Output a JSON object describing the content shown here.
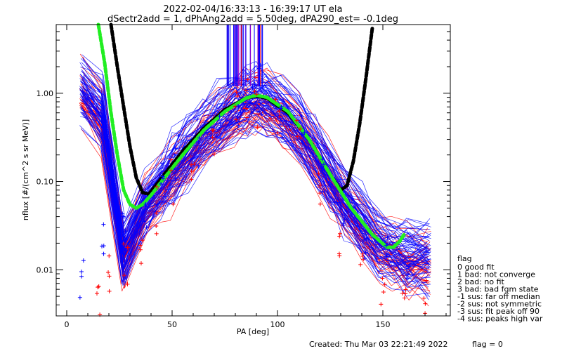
{
  "chart_data": {
    "type": "line",
    "title": "2022-02-04/16:33:13 - 16:39:17 UT ela",
    "subtitle": "dSectr2add = 1, dPhAng2add = 5.50deg, dPA290_est=  -0.1deg",
    "xlabel": "PA [deg]",
    "ylabel": "nflux [#/(cm^2 s sr MeV)]",
    "xlim": [
      -5,
      182
    ],
    "ylim": [
      0.003,
      6.0
    ],
    "yscale": "log",
    "x_ticks": [
      {
        "value": 0,
        "label": "0"
      },
      {
        "value": 50,
        "label": "50"
      },
      {
        "value": 100,
        "label": "100"
      },
      {
        "value": 150,
        "label": "150"
      }
    ],
    "y_ticks": [
      {
        "value": 0.01,
        "label": "0.01"
      },
      {
        "value": 0.1,
        "label": "0.10"
      },
      {
        "value": 1.0,
        "label": "1.00"
      }
    ],
    "grid": false,
    "legend_position": "right",
    "legend": {
      "title": "flag",
      "items": [
        " 0 good fit",
        " 1 bad: not converge",
        " 2 bad: no fit",
        " 3 bad: bad fgm state",
        "-1 sus: far off median",
        "-2 sus: not symmetric",
        "-3 sus: fit peak off 90",
        "-4 sus: peaks high var"
      ]
    },
    "footer": {
      "created": "Created: Thu Mar 03 22:21:49 2022",
      "flag": "flag = 0"
    },
    "series": [
      {
        "style": "dashed",
        "color": "#000000",
        "x": [
          21,
          24,
          27,
          30,
          33,
          36,
          39,
          45,
          55,
          65,
          75,
          85,
          90,
          95,
          105,
          115,
          125,
          130,
          133,
          136,
          139,
          142,
          145
        ],
        "y": [
          6.0,
          2.0,
          0.7,
          0.25,
          0.11,
          0.075,
          0.072,
          0.11,
          0.22,
          0.4,
          0.65,
          0.88,
          0.93,
          0.88,
          0.6,
          0.3,
          0.12,
          0.08,
          0.09,
          0.17,
          0.45,
          1.5,
          5.5
        ]
      },
      {
        "style": "dashed",
        "color": "#22ee22",
        "x": [
          15,
          18,
          21,
          24,
          27,
          30,
          33,
          36,
          40,
          45,
          55,
          65,
          75,
          85,
          90,
          95,
          105,
          115,
          125,
          135,
          145,
          152,
          155,
          158,
          160
        ],
        "y": [
          6.0,
          2.2,
          0.6,
          0.2,
          0.08,
          0.055,
          0.05,
          0.055,
          0.07,
          0.1,
          0.2,
          0.38,
          0.62,
          0.88,
          0.95,
          0.9,
          0.62,
          0.3,
          0.12,
          0.05,
          0.025,
          0.018,
          0.018,
          0.021,
          0.025
        ]
      }
    ],
    "scatter_groups": [
      {
        "color": "#ff0000",
        "x": [
          15,
          20,
          28,
          35,
          43,
          50,
          60,
          70,
          80,
          85,
          90,
          100,
          110,
          120,
          130,
          140,
          150,
          160,
          170
        ],
        "y": [
          0.005,
          0.008,
          0.012,
          0.02,
          0.04,
          0.08,
          0.15,
          0.35,
          0.8,
          1.05,
          0.9,
          0.6,
          0.3,
          0.1,
          0.03,
          0.012,
          0.007,
          0.005,
          0.004
        ]
      },
      {
        "color": "#0000ff",
        "x": [
          7,
          17,
          27,
          37,
          45,
          52,
          62,
          72,
          82,
          88,
          92,
          102,
          112,
          122,
          132,
          142,
          152,
          162
        ],
        "y": [
          0.01,
          0.015,
          0.025,
          0.05,
          0.1,
          0.18,
          0.32,
          0.55,
          0.85,
          1.0,
          0.95,
          0.65,
          0.35,
          0.12,
          0.04,
          0.02,
          0.015,
          0.012
        ]
      }
    ]
  }
}
